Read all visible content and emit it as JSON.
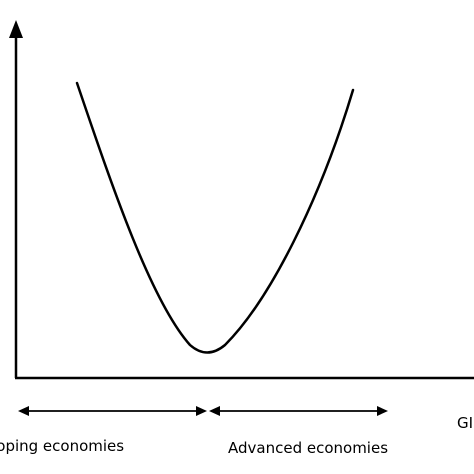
{
  "labels": {
    "developing": "veloping economies",
    "advanced": "Advanced economies",
    "x_axis": "GI"
  },
  "colors": {
    "line": "#000000",
    "background": "#ffffff"
  }
}
